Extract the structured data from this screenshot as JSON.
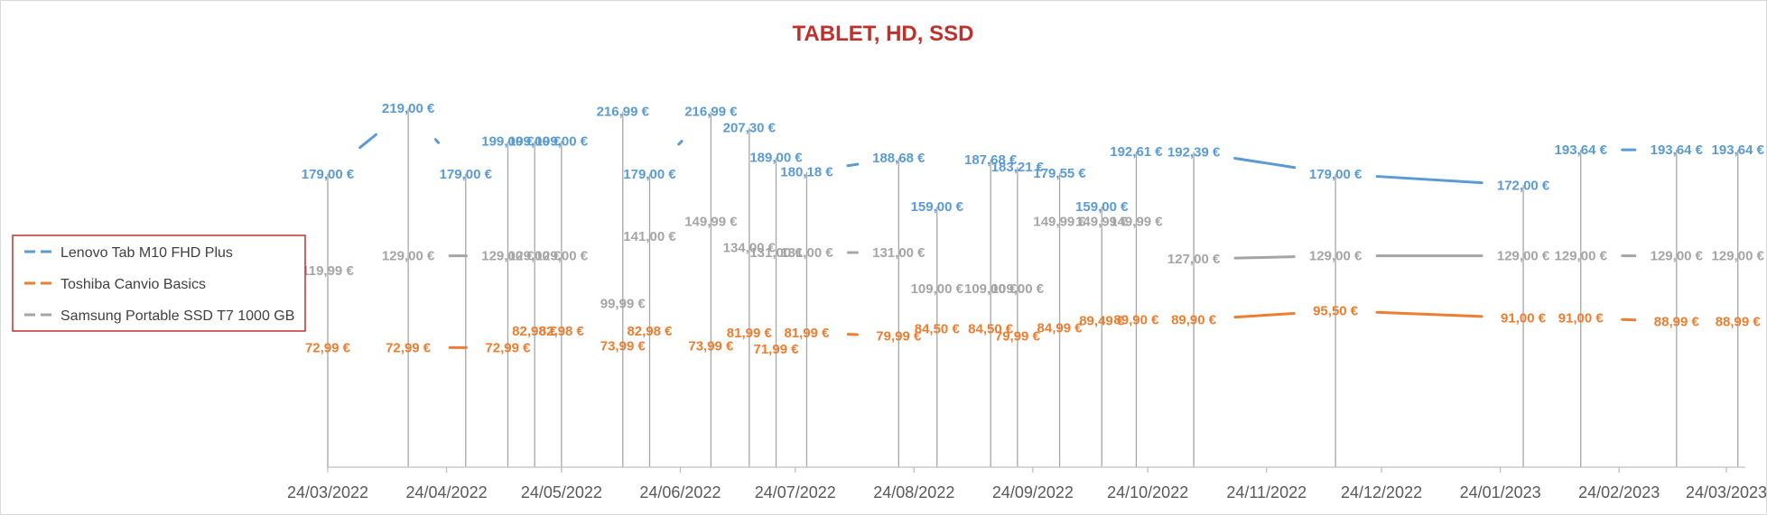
{
  "chart_data": {
    "type": "line",
    "title": "TABLET, HD, SSD",
    "xlabel": "",
    "ylabel": "",
    "x_axis": {
      "type": "date",
      "range": [
        "2022-03-24",
        "2023-03-24"
      ],
      "tick_labels": [
        "24/03/2022",
        "24/04/2022",
        "24/05/2022",
        "24/06/2022",
        "24/07/2022",
        "24/08/2022",
        "24/09/2022",
        "24/10/2022",
        "24/11/2022",
        "24/12/2022",
        "24/01/2023",
        "24/02/2023",
        "24/03/2023"
      ]
    },
    "ylim": [
      0,
      235
    ],
    "y_axis_visible": false,
    "grid": false,
    "drop_lines": true,
    "legend": {
      "placement": "left"
    },
    "series": [
      {
        "name": "Lenovo Tab M10 FHD Plus",
        "color": "#5b9bd5",
        "points": [
          {
            "x": "2022-03-24",
            "y": 179.0,
            "label": "179,00 €"
          },
          {
            "x": "2022-04-14",
            "y": 219.0,
            "label": "219,00 €"
          },
          {
            "x": "2022-04-29",
            "y": 179.0,
            "label": "179,00 €"
          },
          {
            "x": "2022-05-10",
            "y": 199.0,
            "label": "199,00 €"
          },
          {
            "x": "2022-05-17",
            "y": 199.0,
            "label": "199,00 €"
          },
          {
            "x": "2022-05-24",
            "y": 199.0,
            "label": "199,00 €"
          },
          {
            "x": "2022-06-09",
            "y": 216.99,
            "label": "216,99 €"
          },
          {
            "x": "2022-06-16",
            "y": 179.0,
            "label": "179,00 €"
          },
          {
            "x": "2022-07-02",
            "y": 216.99,
            "label": "216,99 €"
          },
          {
            "x": "2022-07-12",
            "y": 207.3,
            "label": "207,30 €"
          },
          {
            "x": "2022-07-19",
            "y": 189.0,
            "label": "189,00 €"
          },
          {
            "x": "2022-07-27",
            "y": 180.18,
            "label": "180,18 €"
          },
          {
            "x": "2022-08-20",
            "y": 188.68,
            "label": "188,68 €"
          },
          {
            "x": "2022-08-30",
            "y": 159.0,
            "label": "159,00 €"
          },
          {
            "x": "2022-09-13",
            "y": 187.68,
            "label": "187,68 €"
          },
          {
            "x": "2022-09-20",
            "y": 183.21,
            "label": "183,21 €"
          },
          {
            "x": "2022-10-01",
            "y": 179.55,
            "label": "179,55 €"
          },
          {
            "x": "2022-10-12",
            "y": 159.0,
            "label": "159,00 €"
          },
          {
            "x": "2022-10-21",
            "y": 192.61,
            "label": "192,61 €"
          },
          {
            "x": "2022-11-05",
            "y": 192.39,
            "label": "192,39 €"
          },
          {
            "x": "2022-12-12",
            "y": 179.0,
            "label": "179,00 €"
          },
          {
            "x": "2023-01-30",
            "y": 172.0,
            "label": "172,00 €"
          },
          {
            "x": "2023-02-14",
            "y": 193.64,
            "label": "193,64 €"
          },
          {
            "x": "2023-03-11",
            "y": 193.64,
            "label": "193,64 €"
          },
          {
            "x": "2023-03-27",
            "y": 193.64,
            "label": "193,64 €"
          }
        ]
      },
      {
        "name": "Toshiba Canvio Basics",
        "color": "#ed7d31",
        "points": [
          {
            "x": "2022-03-24",
            "y": 72.99,
            "label": "72,99 €"
          },
          {
            "x": "2022-04-14",
            "y": 72.99,
            "label": "72,99 €"
          },
          {
            "x": "2022-05-10",
            "y": 72.99,
            "label": "72,99 €"
          },
          {
            "x": "2022-05-17",
            "y": 82.98,
            "label": "82,98 €"
          },
          {
            "x": "2022-05-24",
            "y": 82.98,
            "label": "82,98 €"
          },
          {
            "x": "2022-06-09",
            "y": 73.99,
            "label": "73,99 €"
          },
          {
            "x": "2022-06-16",
            "y": 82.98,
            "label": "82,98 €"
          },
          {
            "x": "2022-07-02",
            "y": 73.99,
            "label": "73,99 €"
          },
          {
            "x": "2022-07-12",
            "y": 81.99,
            "label": "81,99 €"
          },
          {
            "x": "2022-07-19",
            "y": 71.99,
            "label": "71,99 €"
          },
          {
            "x": "2022-07-27",
            "y": 81.99,
            "label": "81,99 €"
          },
          {
            "x": "2022-08-20",
            "y": 79.99,
            "label": "79,99 €"
          },
          {
            "x": "2022-08-30",
            "y": 84.5,
            "label": "84,50 €"
          },
          {
            "x": "2022-09-13",
            "y": 84.5,
            "label": "84,50 €"
          },
          {
            "x": "2022-09-20",
            "y": 79.99,
            "label": "79,99 €"
          },
          {
            "x": "2022-10-01",
            "y": 84.99,
            "label": "84,99 €"
          },
          {
            "x": "2022-10-12",
            "y": 89.49,
            "label": "89,49 €"
          },
          {
            "x": "2022-10-21",
            "y": 89.9,
            "label": "89,90 €"
          },
          {
            "x": "2022-11-05",
            "y": 89.9,
            "label": "89,90 €"
          },
          {
            "x": "2022-12-12",
            "y": 95.5,
            "label": "95,50 €"
          },
          {
            "x": "2023-01-30",
            "y": 91.0,
            "label": "91,00 €"
          },
          {
            "x": "2023-02-14",
            "y": 91.0,
            "label": "91,00 €"
          },
          {
            "x": "2023-03-11",
            "y": 88.99,
            "label": "88,99 €"
          },
          {
            "x": "2023-03-27",
            "y": 88.99,
            "label": "88,99 €"
          }
        ]
      },
      {
        "name": "Samsung Portable SSD T7 1000 GB",
        "color": "#a5a5a5",
        "points": [
          {
            "x": "2022-03-24",
            "y": 119.99,
            "label": "119,99 €"
          },
          {
            "x": "2022-04-14",
            "y": 129.0,
            "label": "129,00 €"
          },
          {
            "x": "2022-05-10",
            "y": 129.0,
            "label": "129,00 €"
          },
          {
            "x": "2022-05-17",
            "y": 129.0,
            "label": "129,00 €"
          },
          {
            "x": "2022-05-24",
            "y": 129.0,
            "label": "129,00 €"
          },
          {
            "x": "2022-06-09",
            "y": 99.99,
            "label": "99,99 €"
          },
          {
            "x": "2022-06-16",
            "y": 141.0,
            "label": "141,00 €"
          },
          {
            "x": "2022-07-02",
            "y": 149.99,
            "label": "149,99 €"
          },
          {
            "x": "2022-07-12",
            "y": 134.0,
            "label": "134,00 €"
          },
          {
            "x": "2022-07-19",
            "y": 131.0,
            "label": "131,00 €"
          },
          {
            "x": "2022-07-27",
            "y": 131.0,
            "label": "131,00 €"
          },
          {
            "x": "2022-08-20",
            "y": 131.0,
            "label": "131,00 €"
          },
          {
            "x": "2022-08-30",
            "y": 109.0,
            "label": "109,00 €"
          },
          {
            "x": "2022-09-13",
            "y": 109.0,
            "label": "109,00 €"
          },
          {
            "x": "2022-09-20",
            "y": 109.0,
            "label": "109,00 €"
          },
          {
            "x": "2022-10-01",
            "y": 149.99,
            "label": "149,99 €"
          },
          {
            "x": "2022-10-12",
            "y": 149.99,
            "label": "149,99 €"
          },
          {
            "x": "2022-10-21",
            "y": 149.99,
            "label": "149,99 €"
          },
          {
            "x": "2022-11-05",
            "y": 127.0,
            "label": "127,00 €"
          },
          {
            "x": "2022-12-12",
            "y": 129.0,
            "label": "129,00 €"
          },
          {
            "x": "2023-01-30",
            "y": 129.0,
            "label": "129,00 €"
          },
          {
            "x": "2023-02-14",
            "y": 129.0,
            "label": "129,00 €"
          },
          {
            "x": "2023-03-11",
            "y": 129.0,
            "label": "129,00 €"
          },
          {
            "x": "2023-03-27",
            "y": 129.0,
            "label": "129,00 €"
          }
        ]
      }
    ]
  }
}
